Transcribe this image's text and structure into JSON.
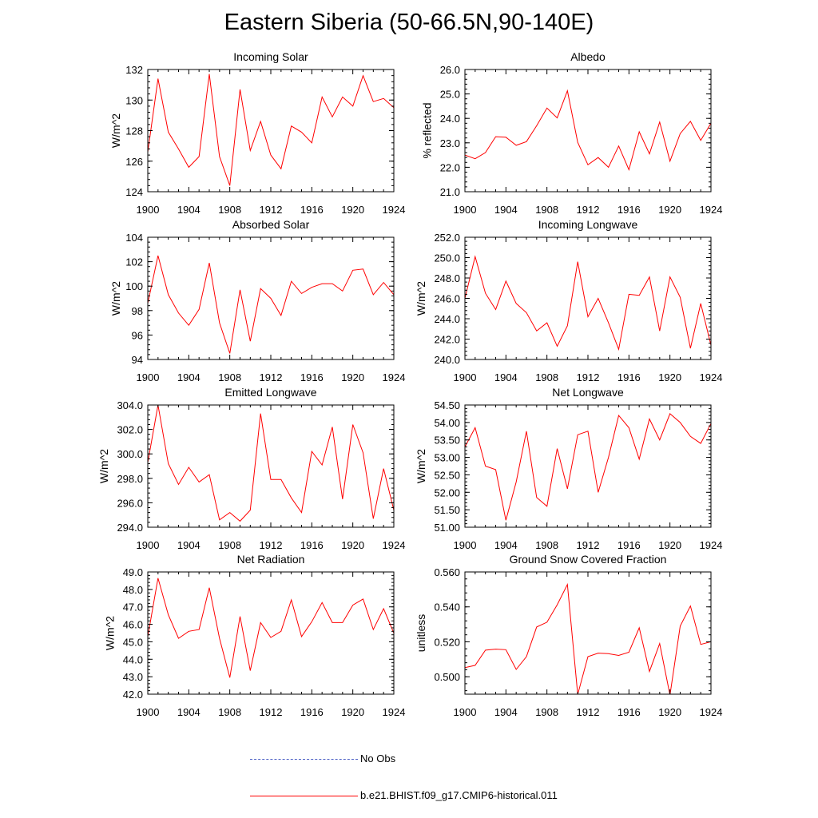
{
  "page": {
    "title": "Eastern Siberia (50-66.5N,90-140E)"
  },
  "colors": {
    "model_line": "#ff0000",
    "obs_line": "#4b5fc4",
    "axis": "#000000"
  },
  "legend": {
    "items": [
      {
        "label": "No Obs",
        "style": "dashed",
        "color": "#4b5fc4"
      },
      {
        "label": "b.e21.BHIST.f09_g17.CMIP6-historical.011",
        "style": "solid",
        "color": "#ff0000"
      }
    ]
  },
  "chart_data": [
    {
      "type": "line",
      "title": "Incoming Solar",
      "ylabel": "W/m^2",
      "xlim": [
        1900,
        1924
      ],
      "ylim": [
        124,
        132
      ],
      "yticks": [
        124,
        126,
        128,
        130,
        132
      ],
      "ytick_labels": [
        "124",
        "126",
        "128",
        "130",
        "132"
      ],
      "xticks": [
        1900,
        1904,
        1908,
        1912,
        1916,
        1920,
        1924
      ],
      "xtick_labels": [
        "1900",
        "1904",
        "1908",
        "1912",
        "1916",
        "1920",
        "1924"
      ],
      "x": [
        1900,
        1901,
        1902,
        1903,
        1904,
        1905,
        1906,
        1907,
        1908,
        1909,
        1910,
        1911,
        1912,
        1913,
        1914,
        1915,
        1916,
        1917,
        1918,
        1919,
        1920,
        1921,
        1922,
        1923,
        1924
      ],
      "series": [
        {
          "values": [
            126.6,
            131.4,
            127.9,
            126.8,
            125.6,
            126.3,
            131.7,
            126.3,
            124.4,
            130.7,
            126.7,
            128.6,
            126.4,
            125.5,
            128.3,
            127.9,
            127.2,
            130.2,
            128.9,
            130.2,
            129.6,
            131.6,
            129.9,
            130.1,
            129.5
          ]
        }
      ]
    },
    {
      "type": "line",
      "title": "Albedo",
      "ylabel": "% reflected",
      "xlim": [
        1900,
        1924
      ],
      "ylim": [
        21.0,
        26.0
      ],
      "yticks": [
        21,
        22,
        23,
        24,
        25,
        26
      ],
      "ytick_labels": [
        "21.0",
        "22.0",
        "23.0",
        "24.0",
        "25.0",
        "26.0"
      ],
      "xticks": [
        1900,
        1904,
        1908,
        1912,
        1916,
        1920,
        1924
      ],
      "xtick_labels": [
        "1900",
        "1904",
        "1908",
        "1912",
        "1916",
        "1920",
        "1924"
      ],
      "x": [
        1900,
        1901,
        1902,
        1903,
        1904,
        1905,
        1906,
        1907,
        1908,
        1909,
        1910,
        1911,
        1912,
        1913,
        1914,
        1915,
        1916,
        1917,
        1918,
        1919,
        1920,
        1921,
        1922,
        1923,
        1924
      ],
      "series": [
        {
          "values": [
            22.5,
            22.35,
            22.6,
            23.25,
            23.23,
            22.9,
            23.05,
            23.7,
            24.42,
            24.02,
            25.13,
            23.02,
            22.1,
            22.4,
            22.0,
            22.87,
            21.9,
            23.45,
            22.55,
            23.85,
            22.25,
            23.38,
            23.88,
            23.1,
            23.8
          ]
        }
      ]
    },
    {
      "type": "line",
      "title": "Absorbed Solar",
      "ylabel": "W/m^2",
      "xlim": [
        1900,
        1924
      ],
      "ylim": [
        94,
        104
      ],
      "yticks": [
        94,
        96,
        98,
        100,
        102,
        104
      ],
      "ytick_labels": [
        "94",
        "96",
        "98",
        "100",
        "102",
        "104"
      ],
      "xticks": [
        1900,
        1904,
        1908,
        1912,
        1916,
        1920,
        1924
      ],
      "xtick_labels": [
        "1900",
        "1904",
        "1908",
        "1912",
        "1916",
        "1920",
        "1924"
      ],
      "x": [
        1900,
        1901,
        1902,
        1903,
        1904,
        1905,
        1906,
        1907,
        1908,
        1909,
        1910,
        1911,
        1912,
        1913,
        1914,
        1915,
        1916,
        1917,
        1918,
        1919,
        1920,
        1921,
        1922,
        1923,
        1924
      ],
      "series": [
        {
          "values": [
            98.6,
            102.5,
            99.3,
            97.8,
            96.8,
            98.1,
            101.9,
            97.0,
            94.5,
            99.7,
            95.5,
            99.8,
            99.0,
            97.6,
            100.4,
            99.4,
            99.9,
            100.2,
            100.2,
            99.6,
            101.3,
            101.4,
            99.3,
            100.3,
            99.3
          ]
        }
      ]
    },
    {
      "type": "line",
      "title": "Incoming Longwave",
      "ylabel": "W/m^2",
      "xlim": [
        1900,
        1924
      ],
      "ylim": [
        240.0,
        252.0
      ],
      "yticks": [
        240,
        242,
        244,
        246,
        248,
        250,
        252
      ],
      "ytick_labels": [
        "240.0",
        "242.0",
        "244.0",
        "246.0",
        "248.0",
        "250.0",
        "252.0"
      ],
      "xticks": [
        1900,
        1904,
        1908,
        1912,
        1916,
        1920,
        1924
      ],
      "xtick_labels": [
        "1900",
        "1904",
        "1908",
        "1912",
        "1916",
        "1920",
        "1924"
      ],
      "x": [
        1900,
        1901,
        1902,
        1903,
        1904,
        1905,
        1906,
        1907,
        1908,
        1909,
        1910,
        1911,
        1912,
        1913,
        1914,
        1915,
        1916,
        1917,
        1918,
        1919,
        1920,
        1921,
        1922,
        1923,
        1924
      ],
      "series": [
        {
          "values": [
            246.0,
            250.1,
            246.5,
            244.9,
            247.7,
            245.5,
            244.6,
            242.8,
            243.6,
            241.3,
            243.3,
            249.6,
            244.2,
            246.0,
            243.6,
            241.0,
            246.4,
            246.3,
            248.1,
            242.8,
            248.1,
            246.1,
            241.1,
            245.5,
            241.4
          ]
        }
      ]
    },
    {
      "type": "line",
      "title": "Emitted Longwave",
      "ylabel": "W/m^2",
      "xlim": [
        1900,
        1924
      ],
      "ylim": [
        294.0,
        304.0
      ],
      "yticks": [
        294,
        296,
        298,
        300,
        302,
        304
      ],
      "ytick_labels": [
        "294.0",
        "296.0",
        "298.0",
        "300.0",
        "302.0",
        "304.0"
      ],
      "xticks": [
        1900,
        1904,
        1908,
        1912,
        1916,
        1920,
        1924
      ],
      "xtick_labels": [
        "1900",
        "1904",
        "1908",
        "1912",
        "1916",
        "1920",
        "1924"
      ],
      "x": [
        1900,
        1901,
        1902,
        1903,
        1904,
        1905,
        1906,
        1907,
        1908,
        1909,
        1910,
        1911,
        1912,
        1913,
        1914,
        1915,
        1916,
        1917,
        1918,
        1919,
        1920,
        1921,
        1922,
        1923,
        1924
      ],
      "series": [
        {
          "values": [
            299.3,
            304.0,
            299.2,
            297.5,
            298.9,
            297.7,
            298.3,
            294.6,
            295.2,
            294.5,
            295.4,
            303.3,
            297.9,
            297.9,
            296.4,
            295.2,
            300.2,
            299.1,
            302.2,
            296.3,
            302.4,
            300.1,
            294.7,
            298.8,
            295.4
          ]
        }
      ]
    },
    {
      "type": "line",
      "title": "Net Longwave",
      "ylabel": "W/m^2",
      "xlim": [
        1900,
        1924
      ],
      "ylim": [
        51.0,
        54.5
      ],
      "yticks": [
        51,
        51.5,
        52,
        52.5,
        53,
        53.5,
        54,
        54.5
      ],
      "ytick_labels": [
        "51.00",
        "51.50",
        "52.00",
        "52.50",
        "53.00",
        "53.50",
        "54.00",
        "54.50"
      ],
      "xticks": [
        1900,
        1904,
        1908,
        1912,
        1916,
        1920,
        1924
      ],
      "xtick_labels": [
        "1900",
        "1904",
        "1908",
        "1912",
        "1916",
        "1920",
        "1924"
      ],
      "x": [
        1900,
        1901,
        1902,
        1903,
        1904,
        1905,
        1906,
        1907,
        1908,
        1909,
        1910,
        1911,
        1912,
        1913,
        1914,
        1915,
        1916,
        1917,
        1918,
        1919,
        1920,
        1921,
        1922,
        1923,
        1924
      ],
      "series": [
        {
          "values": [
            53.3,
            53.85,
            52.75,
            52.65,
            51.2,
            52.3,
            53.75,
            51.85,
            51.6,
            53.25,
            52.1,
            53.65,
            53.75,
            52.0,
            53.0,
            54.2,
            53.85,
            52.95,
            54.1,
            53.5,
            54.25,
            54.0,
            53.6,
            53.4,
            53.97
          ]
        }
      ]
    },
    {
      "type": "line",
      "title": "Net Radiation",
      "ylabel": "W/m^2",
      "xlim": [
        1900,
        1924
      ],
      "ylim": [
        42.0,
        49.0
      ],
      "yticks": [
        42,
        43,
        44,
        45,
        46,
        47,
        48,
        49
      ],
      "ytick_labels": [
        "42.0",
        "43.0",
        "44.0",
        "45.0",
        "46.0",
        "47.0",
        "48.0",
        "49.0"
      ],
      "xticks": [
        1900,
        1904,
        1908,
        1912,
        1916,
        1920,
        1924
      ],
      "xtick_labels": [
        "1900",
        "1904",
        "1908",
        "1912",
        "1916",
        "1920",
        "1924"
      ],
      "x": [
        1900,
        1901,
        1902,
        1903,
        1904,
        1905,
        1906,
        1907,
        1908,
        1909,
        1910,
        1911,
        1912,
        1913,
        1914,
        1915,
        1916,
        1917,
        1918,
        1919,
        1920,
        1921,
        1922,
        1923,
        1924
      ],
      "series": [
        {
          "values": [
            45.3,
            48.65,
            46.55,
            45.2,
            45.6,
            45.7,
            48.1,
            45.2,
            42.95,
            46.45,
            43.35,
            46.1,
            45.25,
            45.6,
            47.4,
            45.3,
            46.15,
            47.25,
            46.1,
            46.1,
            47.1,
            47.45,
            45.7,
            46.9,
            45.5
          ]
        }
      ]
    },
    {
      "type": "line",
      "title": "Ground Snow Covered Fraction",
      "ylabel": "unitless",
      "xlim": [
        1900,
        1924
      ],
      "ylim": [
        0.49,
        0.56
      ],
      "yticks": [
        0.5,
        0.52,
        0.54,
        0.56
      ],
      "ytick_labels": [
        "0.500",
        "0.520",
        "0.540",
        "0.560"
      ],
      "xticks": [
        1900,
        1904,
        1908,
        1912,
        1916,
        1920,
        1924
      ],
      "xtick_labels": [
        "1900",
        "1904",
        "1908",
        "1912",
        "1916",
        "1920",
        "1924"
      ],
      "x": [
        1900,
        1901,
        1902,
        1903,
        1904,
        1905,
        1906,
        1907,
        1908,
        1909,
        1910,
        1911,
        1912,
        1913,
        1914,
        1915,
        1916,
        1917,
        1918,
        1919,
        1920,
        1921,
        1922,
        1923,
        1924
      ],
      "series": [
        {
          "values": [
            0.5052,
            0.5065,
            0.5152,
            0.5158,
            0.5155,
            0.5042,
            0.5115,
            0.5285,
            0.5312,
            0.5412,
            0.5528,
            0.4898,
            0.5115,
            0.5135,
            0.5132,
            0.5122,
            0.514,
            0.528,
            0.503,
            0.519,
            0.4895,
            0.529,
            0.5405,
            0.5185,
            0.52
          ]
        }
      ]
    }
  ]
}
